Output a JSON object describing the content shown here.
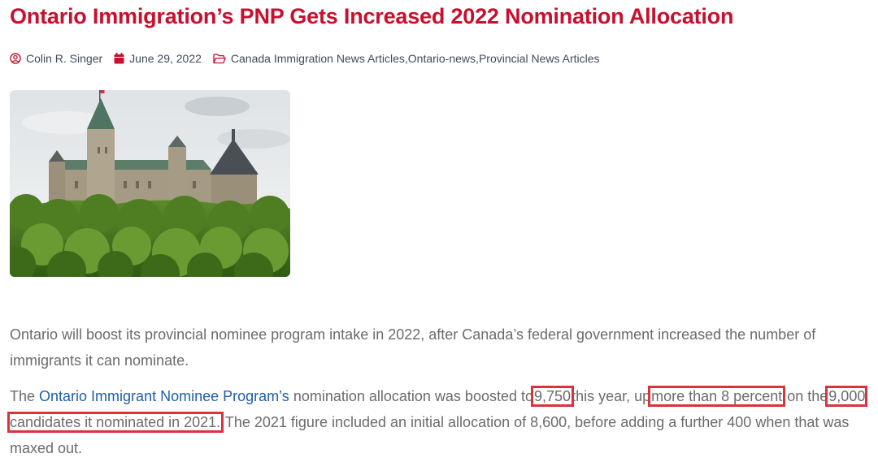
{
  "article": {
    "title": "Ontario Immigration’s PNP Gets Increased 2022 Nomination Allocation",
    "meta": {
      "author": "Colin R. Singer",
      "date": "June 29, 2022",
      "categories": [
        "Canada Immigration News Articles",
        "Ontario-news",
        "Provincial News Articles"
      ],
      "category_separator": ", "
    },
    "paragraph1": "Ontario will boost its provincial nominee program intake in 2022, after Canada’s federal government increased the number of immigrants it can nominate.",
    "paragraph2": {
      "t1": "The ",
      "link": "Ontario Immigrant Nominee Program’s",
      "t2": " nomination allocation was boosted to",
      "h1": "9,750",
      "t3": "this year, up",
      "h2": "more than 8 percent",
      "t4": "on the",
      "h3": "9,000 candidates it nominated in 2021.",
      "t5": " The 2021 figure included an initial allocation of 8,600, before adding a further 400 when that was maxed out."
    }
  },
  "icons": {
    "author": "user-circle-icon",
    "date": "calendar-icon",
    "categories": "folder-open-icon"
  },
  "colors": {
    "title": "#c8102e",
    "meta_text": "#3f4a5a",
    "icon": "#c8102e",
    "body_text": "#6b6b6b",
    "link": "#1f5fa8",
    "highlight_box": "#d9333b"
  }
}
